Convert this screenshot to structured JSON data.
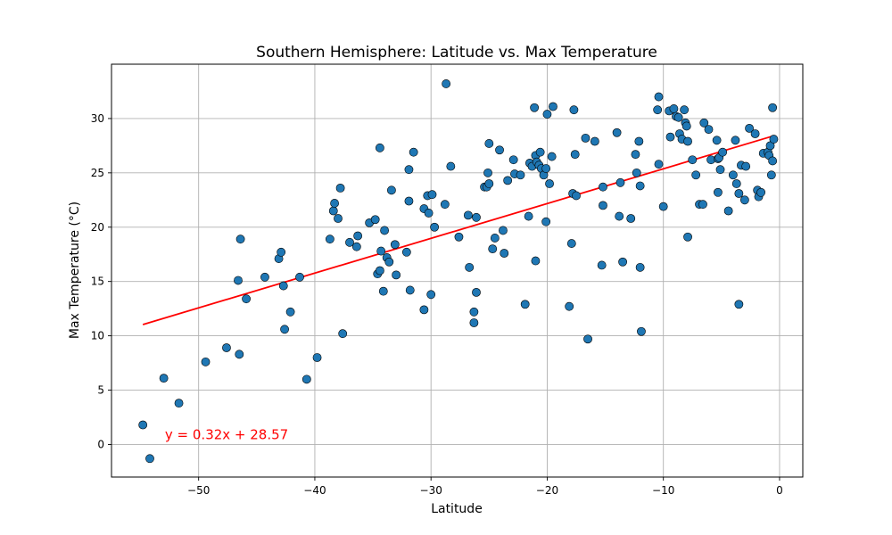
{
  "chart_data": {
    "type": "scatter",
    "title": "Southern Hemisphere: Latitude vs. Max Temperature",
    "xlabel": "Latitude",
    "ylabel": "Max Temperature (°C)",
    "xlim": [
      -57.5,
      2
    ],
    "ylim": [
      -3,
      35
    ],
    "xticks": [
      -50,
      -40,
      -30,
      -20,
      -10,
      0
    ],
    "yticks": [
      0,
      5,
      10,
      15,
      20,
      25,
      30
    ],
    "xtick_labels": [
      "−50",
      "−40",
      "−30",
      "−20",
      "−10",
      "0"
    ],
    "ytick_labels": [
      "0",
      "5",
      "10",
      "15",
      "20",
      "25",
      "30"
    ],
    "grid": true,
    "colors": {
      "points": "#1f77b4",
      "edge": "#000000",
      "regression": "#ff0000",
      "grid": "#b0b0b0"
    },
    "regression": {
      "slope": 0.32,
      "intercept": 28.57,
      "x_range": [
        -54.8,
        -0.6
      ],
      "equation_text": "y = 0.32x + 28.57",
      "text_pos": [
        -52.9,
        0.5
      ]
    },
    "points": [
      [
        -54.8,
        1.8
      ],
      [
        -54.2,
        -1.3
      ],
      [
        -53.0,
        6.1
      ],
      [
        -51.7,
        3.8
      ],
      [
        -49.4,
        7.6
      ],
      [
        -47.6,
        8.9
      ],
      [
        -46.5,
        8.3
      ],
      [
        -46.6,
        15.1
      ],
      [
        -46.4,
        18.9
      ],
      [
        -45.9,
        13.4
      ],
      [
        -44.3,
        15.4
      ],
      [
        -43.1,
        17.1
      ],
      [
        -42.9,
        17.7
      ],
      [
        -42.7,
        14.6
      ],
      [
        -42.6,
        10.6
      ],
      [
        -42.1,
        12.2
      ],
      [
        -41.3,
        15.4
      ],
      [
        -40.7,
        6.0
      ],
      [
        -39.8,
        8.0
      ],
      [
        -38.7,
        18.9
      ],
      [
        -38.4,
        21.5
      ],
      [
        -38.3,
        22.2
      ],
      [
        -38.0,
        20.8
      ],
      [
        -37.8,
        23.6
      ],
      [
        -37.6,
        10.2
      ],
      [
        -37.0,
        18.6
      ],
      [
        -36.4,
        18.2
      ],
      [
        -36.3,
        19.2
      ],
      [
        -35.3,
        20.4
      ],
      [
        -34.8,
        20.7
      ],
      [
        -34.6,
        15.7
      ],
      [
        -34.4,
        16.0
      ],
      [
        -34.4,
        27.3
      ],
      [
        -34.3,
        17.8
      ],
      [
        -34.1,
        14.1
      ],
      [
        -34.0,
        19.7
      ],
      [
        -33.8,
        17.2
      ],
      [
        -33.6,
        16.8
      ],
      [
        -33.4,
        23.4
      ],
      [
        -33.1,
        18.4
      ],
      [
        -33.0,
        15.6
      ],
      [
        -32.1,
        17.7
      ],
      [
        -31.9,
        25.3
      ],
      [
        -31.9,
        22.4
      ],
      [
        -31.8,
        14.2
      ],
      [
        -31.5,
        26.9
      ],
      [
        -30.6,
        21.7
      ],
      [
        -30.6,
        12.4
      ],
      [
        -30.3,
        22.9
      ],
      [
        -30.2,
        21.3
      ],
      [
        -30.0,
        13.8
      ],
      [
        -29.9,
        23.0
      ],
      [
        -29.7,
        20.0
      ],
      [
        -28.8,
        22.1
      ],
      [
        -28.7,
        33.2
      ],
      [
        -28.3,
        25.6
      ],
      [
        -27.6,
        19.1
      ],
      [
        -26.8,
        21.1
      ],
      [
        -26.7,
        16.3
      ],
      [
        -26.3,
        11.2
      ],
      [
        -26.3,
        12.2
      ],
      [
        -26.1,
        20.9
      ],
      [
        -26.1,
        14.0
      ],
      [
        -25.4,
        23.7
      ],
      [
        -25.2,
        23.7
      ],
      [
        -25.1,
        25.0
      ],
      [
        -25.0,
        27.7
      ],
      [
        -25.0,
        24.0
      ],
      [
        -24.7,
        18.0
      ],
      [
        -24.5,
        19.0
      ],
      [
        -24.1,
        27.1
      ],
      [
        -23.8,
        19.7
      ],
      [
        -23.7,
        17.6
      ],
      [
        -23.4,
        24.3
      ],
      [
        -22.9,
        26.2
      ],
      [
        -22.8,
        24.9
      ],
      [
        -22.3,
        24.8
      ],
      [
        -21.9,
        12.9
      ],
      [
        -21.6,
        21.0
      ],
      [
        -21.5,
        25.9
      ],
      [
        -21.3,
        25.6
      ],
      [
        -21.1,
        31.0
      ],
      [
        -21.0,
        26.6
      ],
      [
        -21.0,
        16.9
      ],
      [
        -20.9,
        26.0
      ],
      [
        -20.7,
        25.7
      ],
      [
        -20.6,
        26.9
      ],
      [
        -20.5,
        25.4
      ],
      [
        -20.3,
        24.8
      ],
      [
        -20.1,
        25.4
      ],
      [
        -20.1,
        20.5
      ],
      [
        -20.0,
        30.4
      ],
      [
        -19.8,
        24.0
      ],
      [
        -19.6,
        26.5
      ],
      [
        -19.5,
        31.1
      ],
      [
        -18.1,
        12.7
      ],
      [
        -17.9,
        18.5
      ],
      [
        -17.8,
        23.1
      ],
      [
        -17.7,
        30.8
      ],
      [
        -17.6,
        26.7
      ],
      [
        -17.5,
        22.9
      ],
      [
        -16.7,
        28.2
      ],
      [
        -16.5,
        9.7
      ],
      [
        -15.9,
        27.9
      ],
      [
        -15.3,
        16.5
      ],
      [
        -15.2,
        23.7
      ],
      [
        -15.2,
        22.0
      ],
      [
        -14.0,
        28.7
      ],
      [
        -13.8,
        21.0
      ],
      [
        -13.7,
        24.1
      ],
      [
        -13.5,
        16.8
      ],
      [
        -12.8,
        20.8
      ],
      [
        -12.4,
        26.7
      ],
      [
        -12.3,
        25.0
      ],
      [
        -12.1,
        27.9
      ],
      [
        -12.0,
        23.8
      ],
      [
        -12.0,
        16.3
      ],
      [
        -11.9,
        10.4
      ],
      [
        -10.5,
        30.8
      ],
      [
        -10.4,
        32.0
      ],
      [
        -10.4,
        25.8
      ],
      [
        -10.0,
        21.9
      ],
      [
        -9.5,
        30.7
      ],
      [
        -9.4,
        28.3
      ],
      [
        -9.1,
        30.9
      ],
      [
        -8.9,
        30.2
      ],
      [
        -8.7,
        30.1
      ],
      [
        -8.6,
        28.6
      ],
      [
        -8.4,
        28.1
      ],
      [
        -8.2,
        30.8
      ],
      [
        -8.1,
        29.6
      ],
      [
        -8.0,
        29.3
      ],
      [
        -7.9,
        27.9
      ],
      [
        -7.9,
        19.1
      ],
      [
        -7.5,
        26.2
      ],
      [
        -7.2,
        24.8
      ],
      [
        -6.9,
        22.1
      ],
      [
        -6.6,
        22.1
      ],
      [
        -6.5,
        29.6
      ],
      [
        -6.1,
        29.0
      ],
      [
        -5.9,
        26.2
      ],
      [
        -5.4,
        28.0
      ],
      [
        -5.3,
        26.3
      ],
      [
        -5.3,
        23.2
      ],
      [
        -5.2,
        26.4
      ],
      [
        -5.1,
        25.3
      ],
      [
        -4.9,
        26.9
      ],
      [
        -4.4,
        21.5
      ],
      [
        -4.0,
        24.8
      ],
      [
        -3.8,
        28.0
      ],
      [
        -3.7,
        24.0
      ],
      [
        -3.5,
        23.1
      ],
      [
        -3.5,
        12.9
      ],
      [
        -3.3,
        25.7
      ],
      [
        -3.0,
        22.5
      ],
      [
        -2.9,
        25.6
      ],
      [
        -2.6,
        29.1
      ],
      [
        -2.1,
        28.6
      ],
      [
        -1.9,
        23.4
      ],
      [
        -1.8,
        22.8
      ],
      [
        -1.6,
        23.2
      ],
      [
        -1.4,
        26.8
      ],
      [
        -1.0,
        26.9
      ],
      [
        -0.9,
        26.6
      ],
      [
        -0.8,
        27.5
      ],
      [
        -0.7,
        24.8
      ],
      [
        -0.6,
        26.1
      ],
      [
        -0.6,
        31.0
      ],
      [
        -0.5,
        28.1
      ]
    ]
  }
}
